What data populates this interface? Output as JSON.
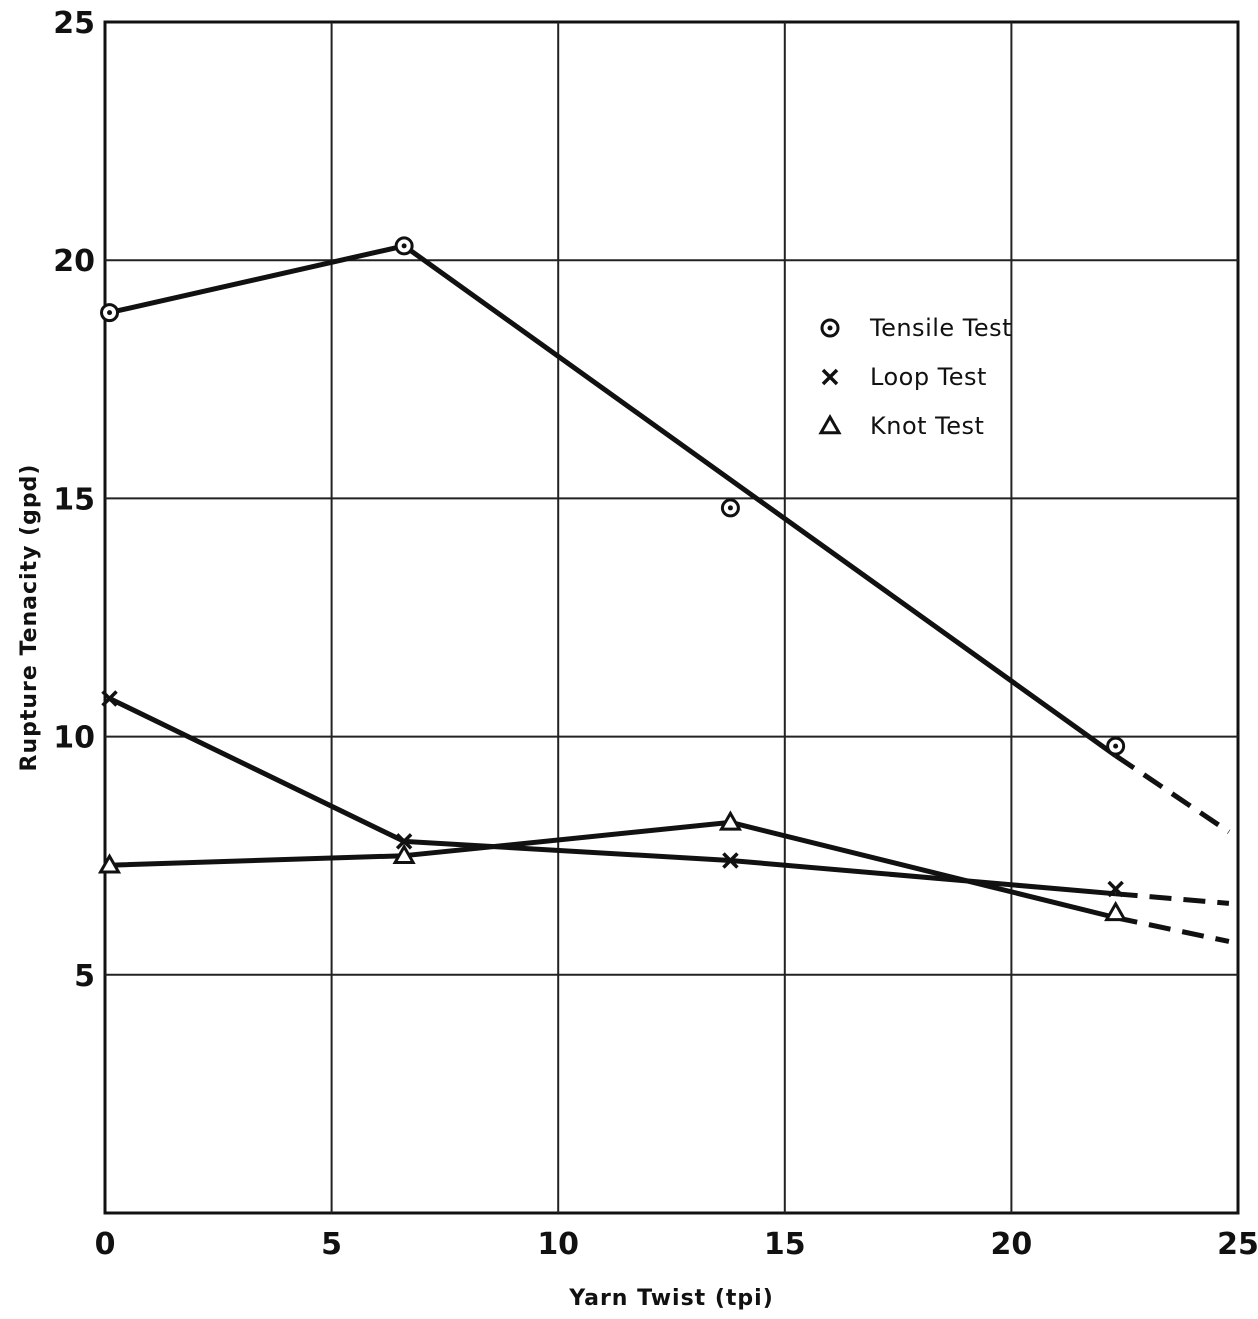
{
  "chart_data": {
    "type": "line",
    "title": "",
    "xlabel": "Yarn Twist (tpi)",
    "ylabel": "Rupture Tenacity (gpd)",
    "xlim": [
      0,
      25
    ],
    "ylim": [
      0,
      25
    ],
    "xticks": [
      0,
      5,
      10,
      15,
      20,
      25
    ],
    "yticks": [
      5,
      10,
      15,
      20,
      25
    ],
    "x_tick_labels": [
      "0",
      "5",
      "10",
      "15",
      "20",
      "25"
    ],
    "y_tick_labels": [
      "5",
      "10",
      "15",
      "20",
      "25"
    ],
    "grid": true,
    "legend_position": "right",
    "series": [
      {
        "name": "Tensile Test",
        "marker": "circle-dot",
        "points": [
          [
            0.1,
            18.9
          ],
          [
            6.6,
            20.3
          ],
          [
            13.8,
            14.8
          ],
          [
            22.3,
            9.8
          ]
        ],
        "line": [
          [
            0.1,
            18.9
          ],
          [
            6.6,
            20.3
          ],
          [
            22.3,
            9.6
          ]
        ],
        "extrapolation": [
          [
            22.3,
            9.6
          ],
          [
            24.8,
            8.0
          ]
        ]
      },
      {
        "name": "Loop Test",
        "marker": "x",
        "points": [
          [
            0.1,
            10.8
          ],
          [
            6.6,
            7.8
          ],
          [
            13.8,
            7.4
          ],
          [
            22.3,
            6.8
          ]
        ],
        "line": [
          [
            0.1,
            10.8
          ],
          [
            6.6,
            7.8
          ],
          [
            13.8,
            7.4
          ],
          [
            22.3,
            6.7
          ]
        ],
        "extrapolation": [
          [
            22.3,
            6.7
          ],
          [
            24.8,
            6.5
          ]
        ]
      },
      {
        "name": "Knot Test",
        "marker": "triangle",
        "points": [
          [
            0.1,
            7.3
          ],
          [
            6.6,
            7.5
          ],
          [
            13.8,
            8.2
          ],
          [
            22.3,
            6.3
          ]
        ],
        "line": [
          [
            0.1,
            7.3
          ],
          [
            6.6,
            7.5
          ],
          [
            13.8,
            8.2
          ],
          [
            22.3,
            6.2
          ]
        ],
        "extrapolation": [
          [
            22.3,
            6.2
          ],
          [
            24.8,
            5.7
          ]
        ]
      }
    ]
  }
}
